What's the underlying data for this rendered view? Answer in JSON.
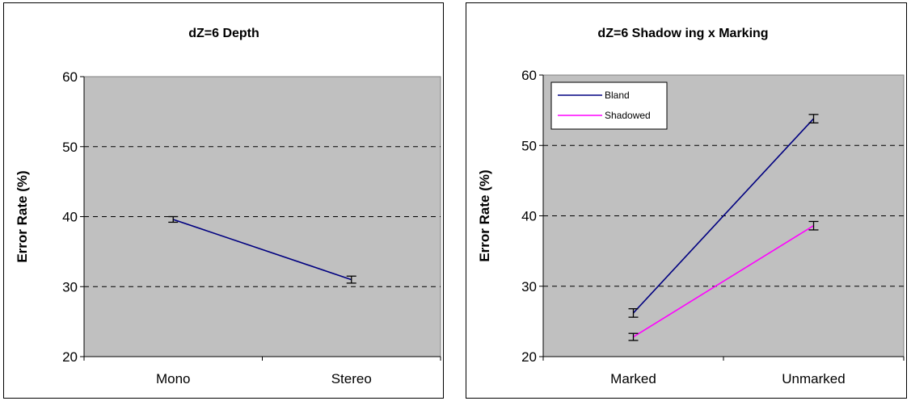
{
  "chart_data": [
    {
      "type": "line",
      "title": "dZ=6  Depth",
      "xlabel": "",
      "ylabel": "Error Rate (%)",
      "categories": [
        "Mono",
        "Stereo"
      ],
      "ylim": [
        20,
        60
      ],
      "yticks": [
        20,
        30,
        40,
        50,
        60
      ],
      "grid": true,
      "legend": false,
      "series": [
        {
          "color": "#000080",
          "values": [
            39.6,
            31.0
          ],
          "errors": [
            0.4,
            0.5
          ]
        }
      ]
    },
    {
      "type": "line",
      "title": "dZ=6  Shadow ing x Marking",
      "xlabel": "",
      "ylabel": "Error Rate (%)",
      "categories": [
        "Marked",
        "Unmarked"
      ],
      "ylim": [
        20,
        60
      ],
      "yticks": [
        20,
        30,
        40,
        50,
        60
      ],
      "grid": true,
      "legend": "top-left",
      "series": [
        {
          "name": "Bland",
          "color": "#000080",
          "values": [
            26.2,
            53.8
          ],
          "errors": [
            0.6,
            0.6
          ]
        },
        {
          "name": "Shadowed",
          "color": "#FF00FF",
          "values": [
            22.8,
            38.6
          ],
          "errors": [
            0.5,
            0.6
          ]
        }
      ]
    }
  ]
}
